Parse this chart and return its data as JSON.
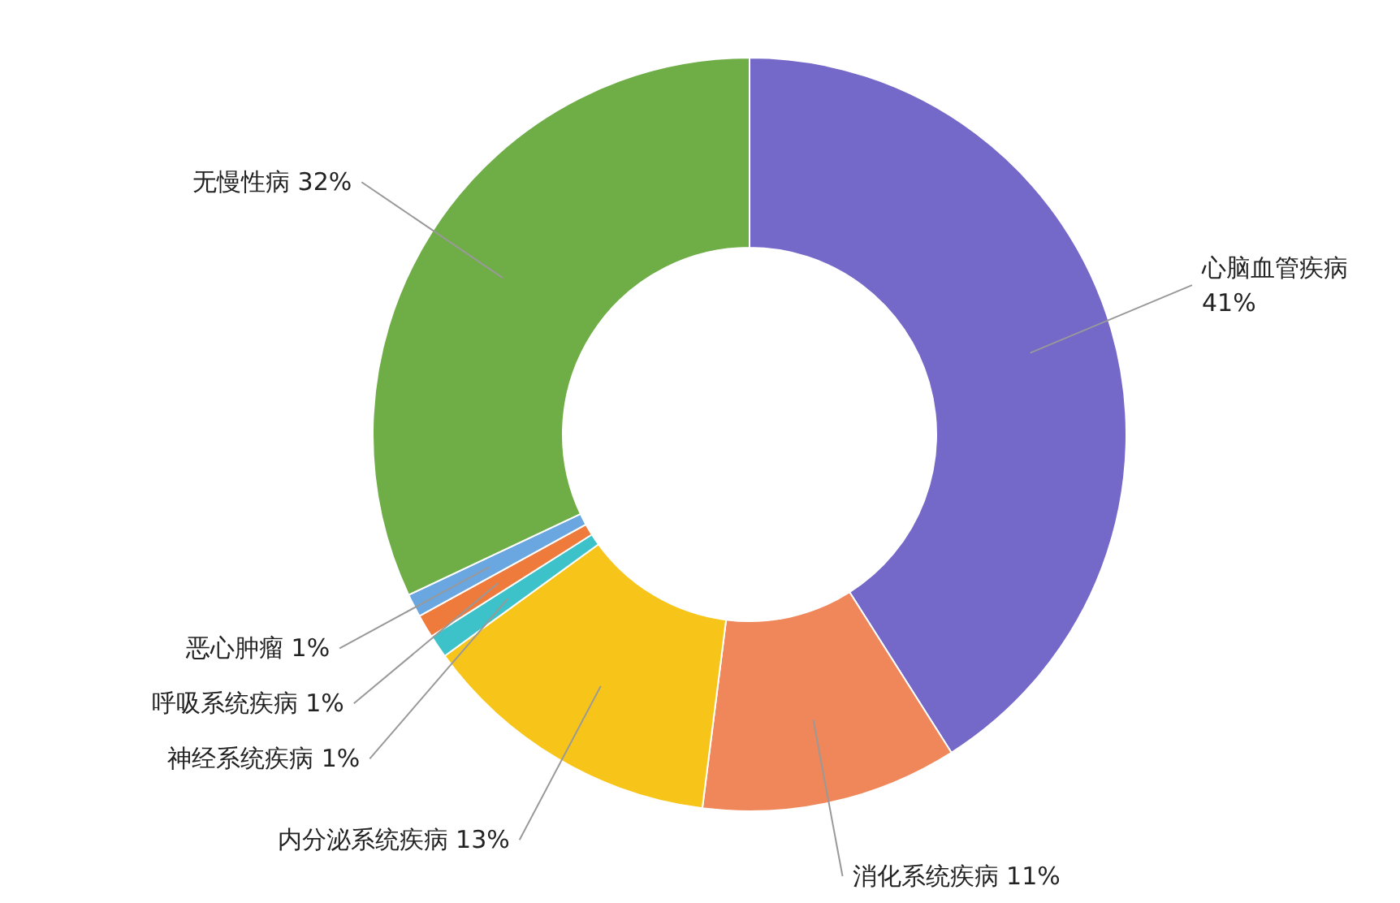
{
  "chart_data": {
    "type": "donut",
    "categories": [
      "心脑血管疾病",
      "消化系统疾病",
      "内分泌系统疾病",
      "神经系统疾病",
      "呼吸系统疾病",
      "恶心肿瘤",
      "无慢性病"
    ],
    "values": [
      41,
      11,
      13,
      1,
      1,
      1,
      32
    ],
    "value_labels": [
      "41%",
      "11%",
      "13%",
      "1%",
      "1%",
      "1%",
      "32%"
    ],
    "colors": [
      "#7468c8",
      "#f0875a",
      "#f7c51a",
      "#3cc2c8",
      "#ee7a3c",
      "#6aa6e0",
      "#6fad47"
    ]
  }
}
